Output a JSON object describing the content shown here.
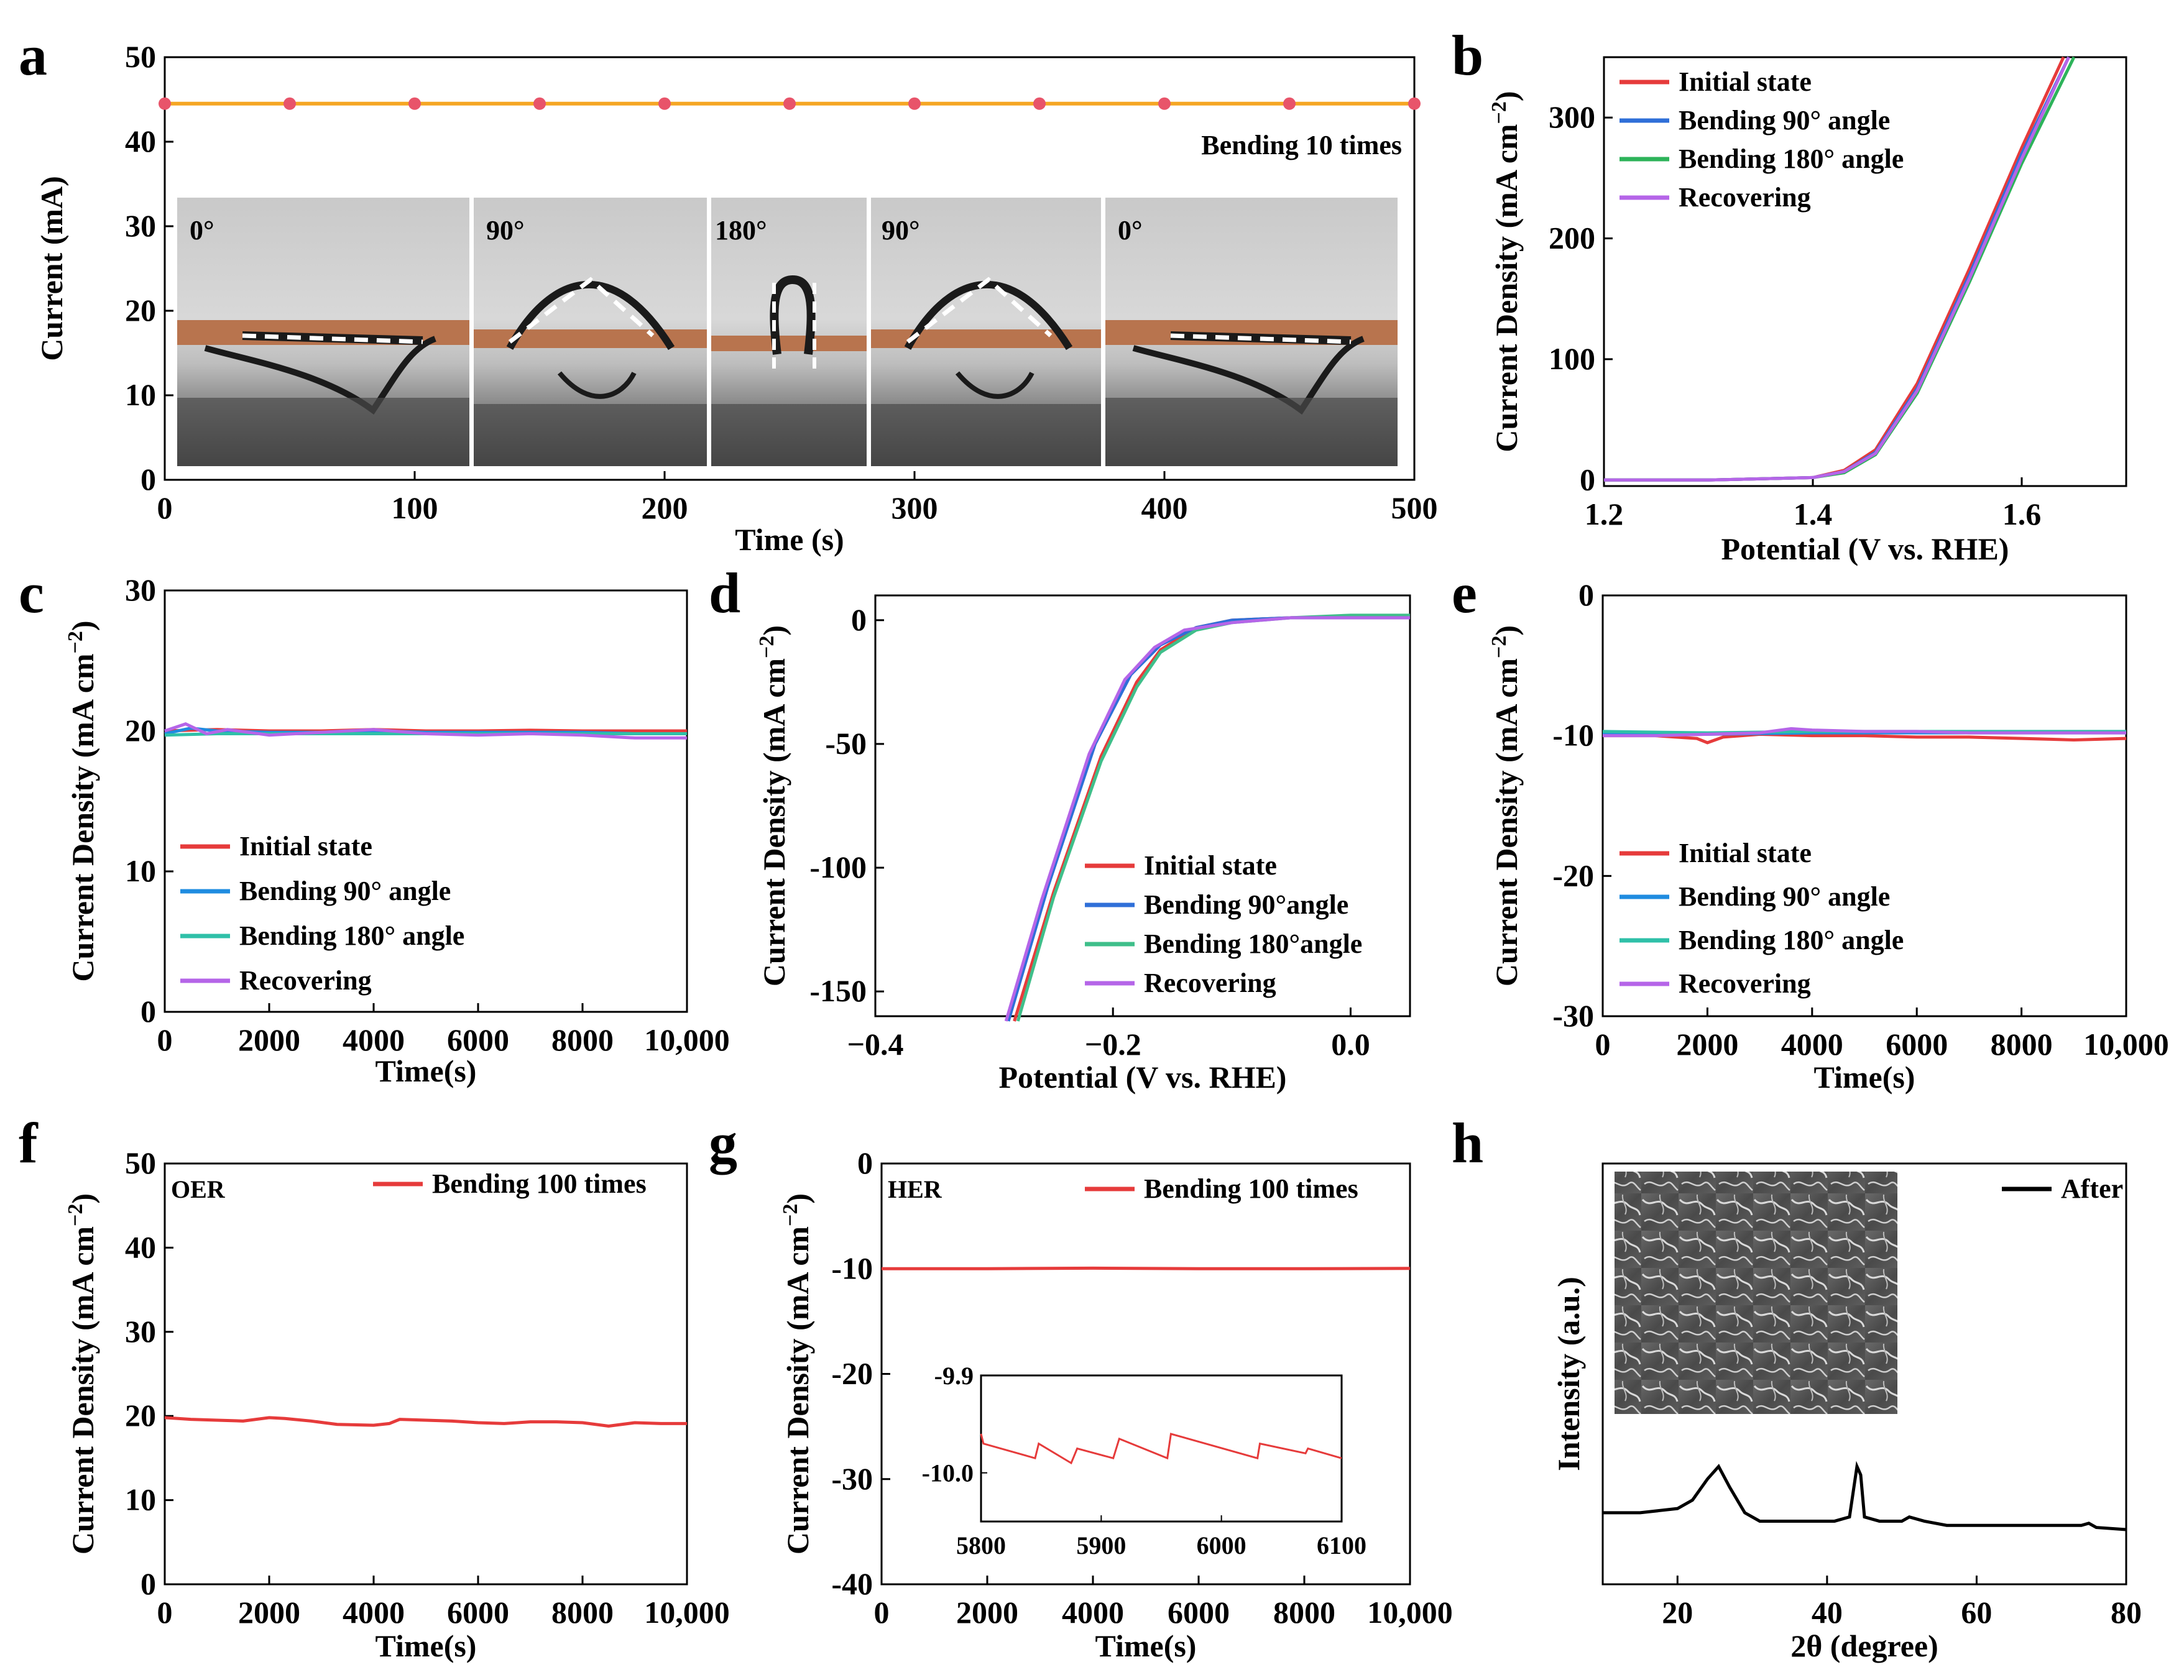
{
  "panel_labels": [
    "a",
    "b",
    "c",
    "d",
    "e",
    "f",
    "g",
    "h"
  ],
  "photo_angles": [
    "0°",
    "90°",
    "180°",
    "90°",
    "0°"
  ],
  "chart_data": [
    {
      "id": "a",
      "type": "line",
      "title": "",
      "annotation": "Bending 10 times",
      "xlabel": "Time (s)",
      "ylabel": "Current (mA)",
      "xlim": [
        0,
        500
      ],
      "ylim": [
        0,
        50
      ],
      "xticks": [
        0,
        100,
        200,
        300,
        400,
        500
      ],
      "yticks": [
        0,
        10,
        20,
        30,
        40,
        50
      ],
      "xtick_labels": [
        "0",
        "100",
        "200",
        "300",
        "400",
        "500"
      ],
      "ytick_labels": [
        "0",
        "10",
        "20",
        "30",
        "40",
        "50"
      ],
      "series": [
        {
          "name": "Current",
          "color": "#f5a623",
          "marker_color": "#e8546a",
          "x": [
            0,
            50,
            100,
            150,
            200,
            250,
            300,
            350,
            400,
            450,
            500
          ],
          "y": [
            44.5,
            44.5,
            44.5,
            44.5,
            44.5,
            44.5,
            44.5,
            44.5,
            44.5,
            44.5,
            44.5
          ]
        }
      ]
    },
    {
      "id": "b",
      "type": "line",
      "xlabel": "Potential (V vs. RHE)",
      "ylabel": "Current Density (mA cm",
      "ylabel_sup": "−2",
      "ylabel_end": ")",
      "xlim": [
        1.2,
        1.7
      ],
      "ylim": [
        -5,
        350
      ],
      "xticks": [
        1.2,
        1.4,
        1.6
      ],
      "yticks": [
        0,
        100,
        200,
        300
      ],
      "xtick_labels": [
        "1.2",
        "1.4",
        "1.6"
      ],
      "ytick_labels": [
        "0",
        "100",
        "200",
        "300"
      ],
      "series": [
        {
          "name": "Initial state",
          "color": "#e63b3b",
          "x": [
            1.2,
            1.3,
            1.4,
            1.43,
            1.46,
            1.5,
            1.55,
            1.6,
            1.64
          ],
          "y": [
            0,
            0,
            2,
            8,
            25,
            80,
            175,
            275,
            350
          ]
        },
        {
          "name": "Bending  90° angle",
          "color": "#2f6fd8",
          "x": [
            1.2,
            1.3,
            1.4,
            1.43,
            1.46,
            1.5,
            1.55,
            1.6,
            1.645
          ],
          "y": [
            0,
            0,
            2,
            7,
            23,
            76,
            170,
            270,
            350
          ]
        },
        {
          "name": "Bending 180° angle",
          "color": "#2db35a",
          "x": [
            1.2,
            1.3,
            1.4,
            1.43,
            1.46,
            1.5,
            1.55,
            1.6,
            1.65
          ],
          "y": [
            0,
            0,
            2,
            6,
            21,
            72,
            164,
            262,
            350
          ]
        },
        {
          "name": "Recovering",
          "color": "#b565e8",
          "x": [
            1.2,
            1.3,
            1.4,
            1.43,
            1.46,
            1.5,
            1.55,
            1.6,
            1.645
          ],
          "y": [
            0,
            0,
            2,
            7,
            22,
            74,
            167,
            266,
            350
          ]
        }
      ]
    },
    {
      "id": "c",
      "type": "line",
      "xlabel": "Time(s)",
      "ylabel": "Current Density (mA cm",
      "ylabel_sup": "−2",
      "ylabel_end": ")",
      "xlim": [
        0,
        10000
      ],
      "ylim": [
        0,
        30
      ],
      "xticks": [
        0,
        2000,
        4000,
        6000,
        8000,
        10000
      ],
      "yticks": [
        0,
        10,
        20,
        30
      ],
      "xtick_labels": [
        "0",
        "2000",
        "4000",
        "6000",
        "8000",
        "10,000"
      ],
      "ytick_labels": [
        "0",
        "10",
        "20",
        "30"
      ],
      "series": [
        {
          "name": "Initial state",
          "color": "#e63b3b",
          "x": [
            0,
            1000,
            2000,
            3000,
            4000,
            5000,
            6000,
            7000,
            8000,
            9000,
            10000
          ],
          "y": [
            20,
            20.1,
            20,
            20,
            20.1,
            20,
            20,
            20.05,
            20,
            20,
            20
          ]
        },
        {
          "name": "Bending 90° angle",
          "color": "#1f8ce0",
          "x": [
            0,
            500,
            1000,
            2000,
            3000,
            4000,
            5000,
            6000,
            7000,
            8000,
            9000,
            10000
          ],
          "y": [
            19.8,
            20.2,
            20,
            19.9,
            19.9,
            20,
            19.9,
            19.9,
            19.9,
            19.9,
            19.8,
            19.8
          ]
        },
        {
          "name": "Bending 180° angle",
          "color": "#2fc0a8",
          "x": [
            0,
            1000,
            2000,
            3000,
            4000,
            5000,
            6000,
            7000,
            8000,
            9000,
            10000
          ],
          "y": [
            19.7,
            19.8,
            19.8,
            19.8,
            19.8,
            19.8,
            19.8,
            19.8,
            19.8,
            19.8,
            19.8
          ]
        },
        {
          "name": "Recovering",
          "color": "#b565e8",
          "x": [
            0,
            400,
            800,
            1200,
            2000,
            3000,
            4000,
            5000,
            6000,
            7000,
            8000,
            9000,
            10000
          ],
          "y": [
            20,
            20.5,
            19.8,
            20.1,
            19.7,
            19.9,
            20.1,
            19.8,
            19.7,
            19.8,
            19.7,
            19.5,
            19.5
          ]
        }
      ]
    },
    {
      "id": "d",
      "type": "line",
      "xlabel": "Potential (V vs. RHE)",
      "ylabel": "Current Density (mA cm",
      "ylabel_sup": "−2",
      "ylabel_end": ")",
      "xlim": [
        -0.4,
        0.05
      ],
      "ylim": [
        -160,
        10
      ],
      "xticks": [
        -0.4,
        -0.2,
        0.0
      ],
      "yticks": [
        -150,
        -100,
        -50,
        0
      ],
      "xtick_labels": [
        "−0.4",
        "−0.2",
        "0.0"
      ],
      "ytick_labels": [
        "-150",
        "-100",
        "-50",
        "0"
      ],
      "series": [
        {
          "name": "Initial state",
          "color": "#e63b3b",
          "x": [
            -0.283,
            -0.25,
            -0.21,
            -0.18,
            -0.16,
            -0.13,
            -0.1,
            -0.05,
            0,
            0.05
          ],
          "y": [
            -162,
            -110,
            -55,
            -25,
            -12,
            -3,
            0,
            1,
            1,
            1
          ]
        },
        {
          "name": "Bending 90°angle",
          "color": "#2f6fd8",
          "x": [
            -0.288,
            -0.255,
            -0.215,
            -0.185,
            -0.16,
            -0.13,
            -0.1,
            -0.05,
            0,
            0.05
          ],
          "y": [
            -162,
            -108,
            -50,
            -22,
            -10,
            -3,
            0,
            1,
            1,
            1
          ]
        },
        {
          "name": "Bending 180°angle",
          "color": "#3fbf8a",
          "x": [
            -0.28,
            -0.25,
            -0.21,
            -0.18,
            -0.16,
            -0.13,
            -0.1,
            -0.05,
            0,
            0.05
          ],
          "y": [
            -162,
            -112,
            -57,
            -27,
            -13,
            -4,
            -1,
            1,
            2,
            2
          ]
        },
        {
          "name": "Recovering",
          "color": "#b565e8",
          "x": [
            -0.29,
            -0.26,
            -0.22,
            -0.19,
            -0.165,
            -0.14,
            -0.1,
            -0.05,
            0,
            0.05
          ],
          "y": [
            -162,
            -113,
            -54,
            -24,
            -11,
            -4,
            -1,
            1,
            1,
            1
          ]
        }
      ]
    },
    {
      "id": "e",
      "type": "line",
      "xlabel": "Time(s)",
      "ylabel": "Current Density (mA cm",
      "ylabel_sup": "−2",
      "ylabel_end": ")",
      "xlim": [
        0,
        10000
      ],
      "ylim": [
        -30,
        0
      ],
      "xticks": [
        0,
        2000,
        4000,
        6000,
        8000,
        10000
      ],
      "yticks": [
        -30,
        -20,
        -10,
        0
      ],
      "xtick_labels": [
        "0",
        "2000",
        "4000",
        "6000",
        "8000",
        "10,000"
      ],
      "ytick_labels": [
        "-30",
        "-20",
        "-10",
        "0"
      ],
      "series": [
        {
          "name": "Initial state",
          "color": "#e63b3b",
          "x": [
            0,
            1000,
            1800,
            2000,
            2300,
            3000,
            4000,
            5000,
            6000,
            7000,
            8000,
            9000,
            10000
          ],
          "y": [
            -10,
            -10,
            -10.2,
            -10.5,
            -10.1,
            -9.9,
            -10,
            -10,
            -10.1,
            -10.1,
            -10.2,
            -10.3,
            -10.2
          ]
        },
        {
          "name": "Bending 90° angle",
          "color": "#1f8ce0",
          "x": [
            0,
            2000,
            4000,
            6000,
            8000,
            10000
          ],
          "y": [
            -9.8,
            -9.9,
            -9.8,
            -9.8,
            -9.8,
            -9.8
          ]
        },
        {
          "name": "Bending 180° angle",
          "color": "#2fc0a8",
          "x": [
            0,
            2000,
            4000,
            6000,
            8000,
            10000
          ],
          "y": [
            -9.7,
            -9.8,
            -9.7,
            -9.7,
            -9.7,
            -9.7
          ]
        },
        {
          "name": "Recovering",
          "color": "#b565e8",
          "x": [
            0,
            1000,
            2000,
            3000,
            3600,
            4000,
            5000,
            6000,
            7000,
            8000,
            9000,
            10000
          ],
          "y": [
            -10,
            -10,
            -9.9,
            -9.8,
            -9.5,
            -9.6,
            -9.7,
            -9.7,
            -9.8,
            -9.8,
            -9.8,
            -9.8
          ]
        }
      ]
    },
    {
      "id": "f",
      "type": "line",
      "xlabel": "Time(s)",
      "ylabel": "Current Density (mA cm",
      "ylabel_sup": "−2",
      "ylabel_end": ")",
      "annotation": "OER",
      "xlim": [
        0,
        10000
      ],
      "ylim": [
        0,
        50
      ],
      "xticks": [
        0,
        2000,
        4000,
        6000,
        8000,
        10000
      ],
      "yticks": [
        0,
        10,
        20,
        30,
        40,
        50
      ],
      "xtick_labels": [
        "0",
        "2000",
        "4000",
        "6000",
        "8000",
        "10,000"
      ],
      "ytick_labels": [
        "0",
        "10",
        "20",
        "30",
        "40",
        "50"
      ],
      "series": [
        {
          "name": "Bending 100 times",
          "color": "#e63b3b",
          "x": [
            0,
            500,
            1000,
            1500,
            2000,
            2300,
            2800,
            3300,
            4000,
            4300,
            4500,
            5000,
            5500,
            6000,
            6500,
            7000,
            7500,
            8000,
            8500,
            9000,
            9500,
            10000
          ],
          "y": [
            19.8,
            19.6,
            19.5,
            19.4,
            19.8,
            19.7,
            19.4,
            19,
            18.9,
            19.1,
            19.6,
            19.5,
            19.4,
            19.2,
            19.1,
            19.3,
            19.3,
            19.2,
            18.8,
            19.2,
            19.1,
            19.1
          ]
        }
      ]
    },
    {
      "id": "g",
      "type": "line",
      "xlabel": "Time(s)",
      "ylabel": "Current Density (mA cm",
      "ylabel_sup": "−2",
      "ylabel_end": ")",
      "annotation": "HER",
      "xlim": [
        0,
        10000
      ],
      "ylim": [
        -40,
        0
      ],
      "xticks": [
        0,
        2000,
        4000,
        6000,
        8000,
        10000
      ],
      "yticks": [
        -40,
        -30,
        -20,
        -10,
        0
      ],
      "xtick_labels": [
        "0",
        "2000",
        "4000",
        "6000",
        "8000",
        "10,000"
      ],
      "ytick_labels": [
        "-40",
        "-30",
        "-20",
        "-10",
        "0"
      ],
      "series": [
        {
          "name": "Bending 100 times",
          "color": "#e63b3b",
          "x": [
            0,
            2000,
            4000,
            6000,
            8000,
            10000
          ],
          "y": [
            -10,
            -10,
            -9.95,
            -10,
            -10,
            -9.97
          ]
        }
      ],
      "inset": {
        "xlim": [
          5800,
          6100
        ],
        "ylim": [
          -10.05,
          -9.9
        ],
        "xticks": [
          5800,
          5900,
          6000,
          6100
        ],
        "yticks": [
          -10.0,
          -9.9
        ],
        "xtick_labels": [
          "5800",
          "5900",
          "6000",
          "6100"
        ],
        "ytick_labels": [
          "-10.0",
          "-9.9"
        ],
        "x": [
          5800,
          5802,
          5845,
          5848,
          5875,
          5880,
          5910,
          5915,
          5955,
          5958,
          6030,
          6032,
          6070,
          6072,
          6100
        ],
        "y": [
          -9.96,
          -9.97,
          -9.985,
          -9.97,
          -9.99,
          -9.975,
          -9.985,
          -9.965,
          -9.985,
          -9.96,
          -9.985,
          -9.97,
          -9.98,
          -9.975,
          -9.985
        ]
      }
    },
    {
      "id": "h",
      "type": "line",
      "xlabel": "2θ (degree)",
      "ylabel": "Intensity (a.u.)",
      "xlim": [
        10,
        80
      ],
      "ylim": [
        0,
        100
      ],
      "xticks": [
        20,
        40,
        60,
        80
      ],
      "yticks": [],
      "xtick_labels": [
        "20",
        "40",
        "60",
        "80"
      ],
      "ytick_labels": [],
      "series": [
        {
          "name": "After",
          "color": "#000000",
          "x": [
            10,
            15,
            20,
            22,
            24,
            25.5,
            27,
            29,
            31,
            34,
            38,
            41,
            43,
            44,
            44.5,
            45,
            47,
            50,
            51,
            53,
            56,
            60,
            65,
            70,
            74,
            75,
            76,
            80
          ],
          "y": [
            17,
            17,
            18,
            20,
            25,
            28,
            23,
            17,
            15,
            15,
            15,
            15,
            16,
            28,
            26,
            16,
            15,
            15,
            16,
            15,
            14,
            14,
            14,
            14,
            14,
            14.5,
            13.5,
            13
          ]
        }
      ]
    }
  ]
}
